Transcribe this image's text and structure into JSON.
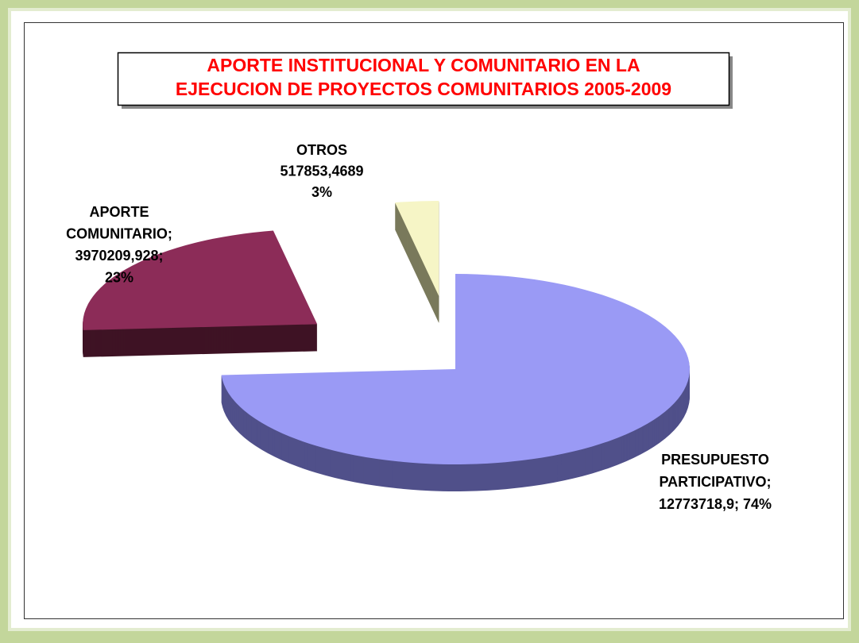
{
  "chart_data": {
    "type": "pie",
    "title_lines": [
      "APORTE INSTITUCIONAL Y COMUNITARIO EN LA",
      "EJECUCION DE PROYECTOS COMUNITARIOS  2005-2009"
    ],
    "values": [
      12773718.9,
      3970209.928,
      517853.4689
    ],
    "percents": [
      74,
      23,
      3
    ],
    "value_labels": [
      [
        "PRESUPUESTO",
        "PARTICIPATIVO;",
        "12773718,9; 74%"
      ],
      [
        "APORTE",
        "COMUNITARIO;",
        "3970209,928;",
        "23%"
      ],
      [
        "OTROS",
        "517853,4689",
        "3%"
      ]
    ],
    "colors": [
      "#9a9af5",
      "#8c2c58",
      "#f6f5c6"
    ],
    "side_colors": [
      "#50508a",
      "#3e1324",
      "#7a7a5c"
    ]
  }
}
